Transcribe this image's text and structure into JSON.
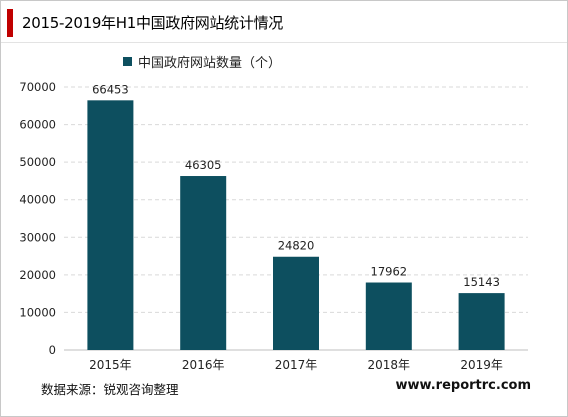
{
  "header": {
    "title": "2015-2019年H1中国政府网站统计情况"
  },
  "footer": {
    "source": "数据来源：锐观咨询整理",
    "website": "www.reportrc.com"
  },
  "colors": {
    "accent": "#c00000",
    "bar": "#0d4f5f",
    "grid": "#d9d9d9"
  },
  "chart_data": {
    "type": "bar",
    "title": "",
    "xlabel": "",
    "ylabel": "",
    "categories": [
      "2015年",
      "2016年",
      "2017年",
      "2018年",
      "2019年"
    ],
    "series": [
      {
        "name": "中国政府网站数量（个）",
        "values": [
          66453,
          46305,
          24820,
          17962,
          15143
        ]
      }
    ],
    "ylim": [
      0,
      70000
    ],
    "yticks": [
      0,
      10000,
      20000,
      30000,
      40000,
      50000,
      60000,
      70000
    ],
    "grid": true,
    "legend": "top-left",
    "data_labels": true
  }
}
